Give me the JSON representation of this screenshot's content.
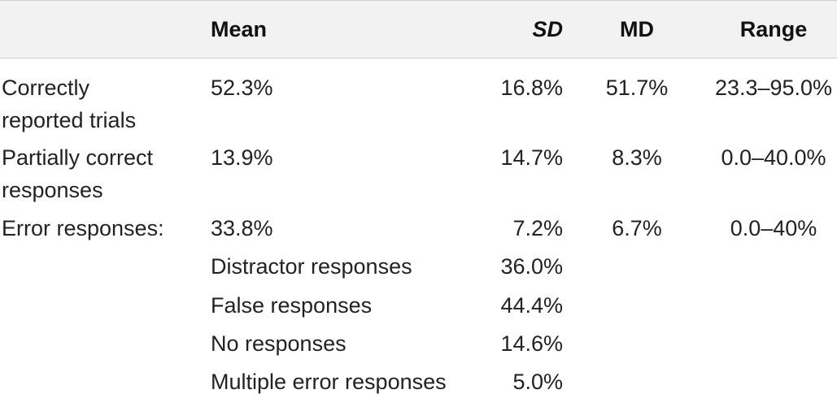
{
  "headers": {
    "label": "",
    "mean": "Mean",
    "sd": "SD",
    "md": "MD",
    "range": "Range"
  },
  "rows": [
    {
      "label_line1": "Correctly",
      "label_line2": "reported trials",
      "mean": "52.3%",
      "sd": "16.8%",
      "md": "51.7%",
      "range": "23.3–95.0%"
    },
    {
      "label_line1": "Partially correct",
      "label_line2": "responses",
      "mean": "13.9%",
      "sd": "14.7%",
      "md": "8.3%",
      "range": "0.0–40.0%"
    },
    {
      "label_line1": "Error responses:",
      "mean": "33.8%",
      "sd": "7.2%",
      "md": "6.7%",
      "range": "0.0–40%"
    }
  ],
  "subrows": [
    {
      "label": "Distractor responses",
      "value": "36.0%"
    },
    {
      "label": "False responses",
      "value": "44.4%"
    },
    {
      "label": "No responses",
      "value": "14.6%"
    },
    {
      "label": "Multiple error responses",
      "value": "5.0%"
    }
  ]
}
